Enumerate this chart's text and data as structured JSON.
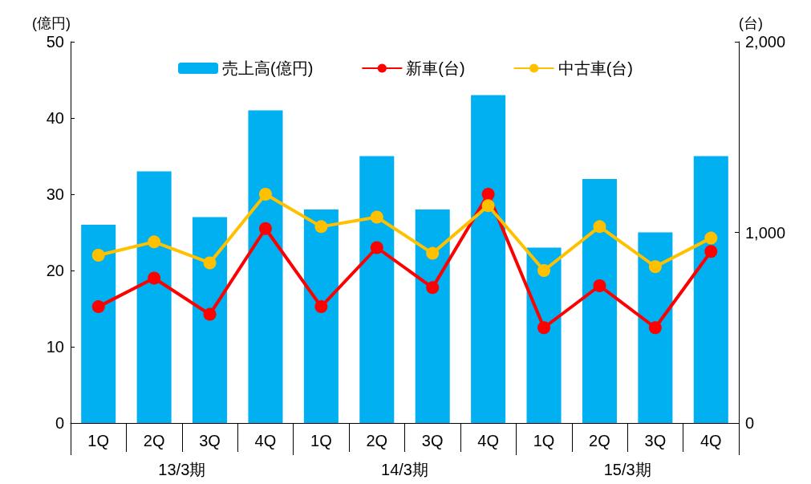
{
  "chart_data": {
    "type": "bar",
    "categories": [
      "1Q",
      "2Q",
      "3Q",
      "4Q",
      "1Q",
      "2Q",
      "3Q",
      "4Q",
      "1Q",
      "2Q",
      "3Q",
      "4Q"
    ],
    "series": [
      {
        "name": "売上高(億円)",
        "color": "#00b0f0",
        "values": [
          26,
          33,
          27,
          41,
          28,
          35,
          28,
          43,
          23,
          32,
          25,
          35
        ]
      },
      {
        "name": "新車(台)",
        "type": "line",
        "axis": "y2",
        "color": "#ff0000",
        "values": [
          610,
          760,
          570,
          1020,
          610,
          920,
          710,
          1200,
          500,
          720,
          500,
          900
        ]
      },
      {
        "name": "中古車(台)",
        "type": "line",
        "axis": "y2",
        "color": "#ffc000",
        "values": [
          880,
          950,
          840,
          1200,
          1030,
          1080,
          890,
          1140,
          800,
          1030,
          820,
          970
        ]
      }
    ],
    "annotations": [
      "13/3期",
      "14/3期",
      "15/3期"
    ],
    "ylabel": "(億円)",
    "y2label": "(台)",
    "ylim": [
      0,
      50
    ],
    "yticks": [
      0,
      10,
      20,
      30,
      40,
      50
    ],
    "y2lim": [
      0,
      2000
    ],
    "y2ticks": [
      0,
      {
        "value": 1000,
        "label": "1,000"
      },
      {
        "value": 2000,
        "label": "2,000"
      }
    ],
    "legend": "top",
    "marker": "circle",
    "line_style": "solid",
    "grid": false
  }
}
